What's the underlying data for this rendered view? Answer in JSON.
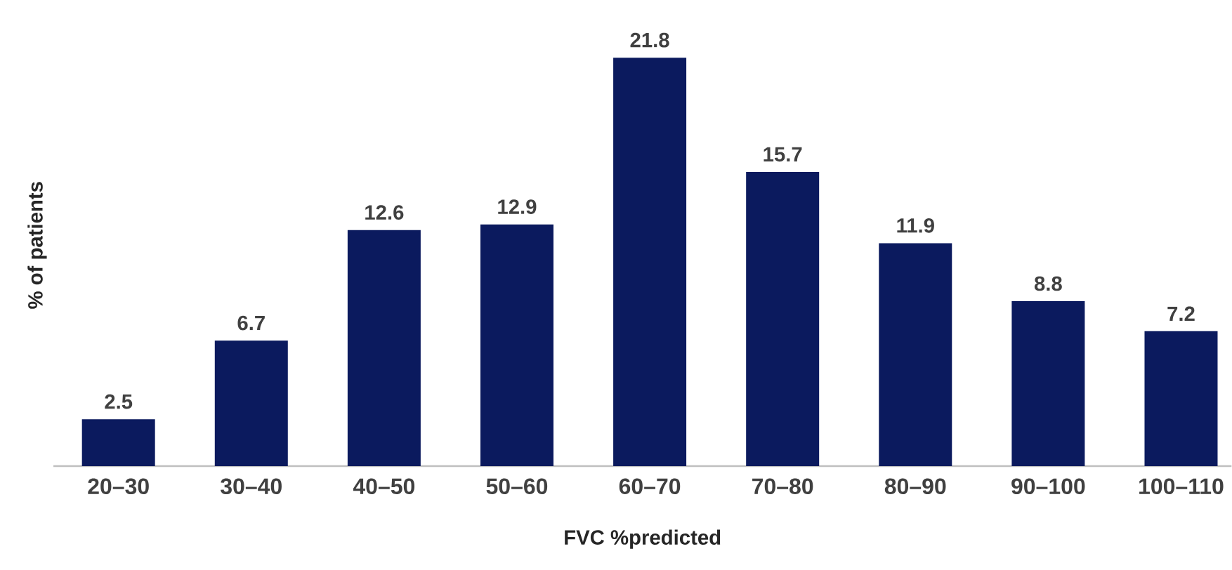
{
  "chart_data": {
    "type": "bar",
    "xlabel": "FVC %predicted",
    "ylabel": "% of patients",
    "categories": [
      "20–30",
      "30–40",
      "40–50",
      "50–60",
      "60–70",
      "70–80",
      "80–90",
      "90–100",
      "100–110"
    ],
    "values": [
      2.5,
      6.7,
      12.6,
      12.9,
      21.8,
      15.7,
      11.9,
      8.8,
      7.2
    ],
    "color": "#0b1a5e",
    "data_labels": true
  }
}
